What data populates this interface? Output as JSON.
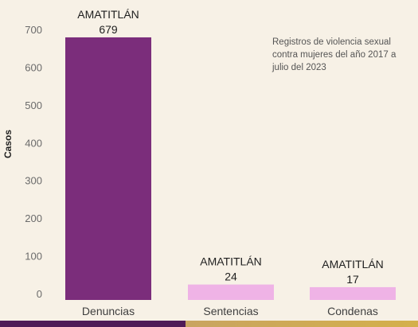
{
  "chart_data": {
    "type": "bar",
    "categories": [
      "Denuncias",
      "Sentencias",
      "Condenas"
    ],
    "values": [
      679,
      24,
      17
    ],
    "bar_group_labels": [
      "AMATITLÁN",
      "AMATITLÁN",
      "AMATITLÁN"
    ],
    "ylabel": "Casos",
    "yticks": [
      0,
      100,
      200,
      300,
      400,
      500,
      600,
      700
    ],
    "ylim": [
      0,
      700
    ],
    "grid": false,
    "annotation": "Registros de violencia sexual contra mujeres del año 2017 a julio del 2023",
    "colors": {
      "Denuncias": "#7b2d7b",
      "Sentencias": "#efb3e6",
      "Condenas": "#efb3e6",
      "footer_left": "#4f1a57",
      "footer_right": "#d4b04b",
      "background": "#f7f1e6"
    }
  }
}
